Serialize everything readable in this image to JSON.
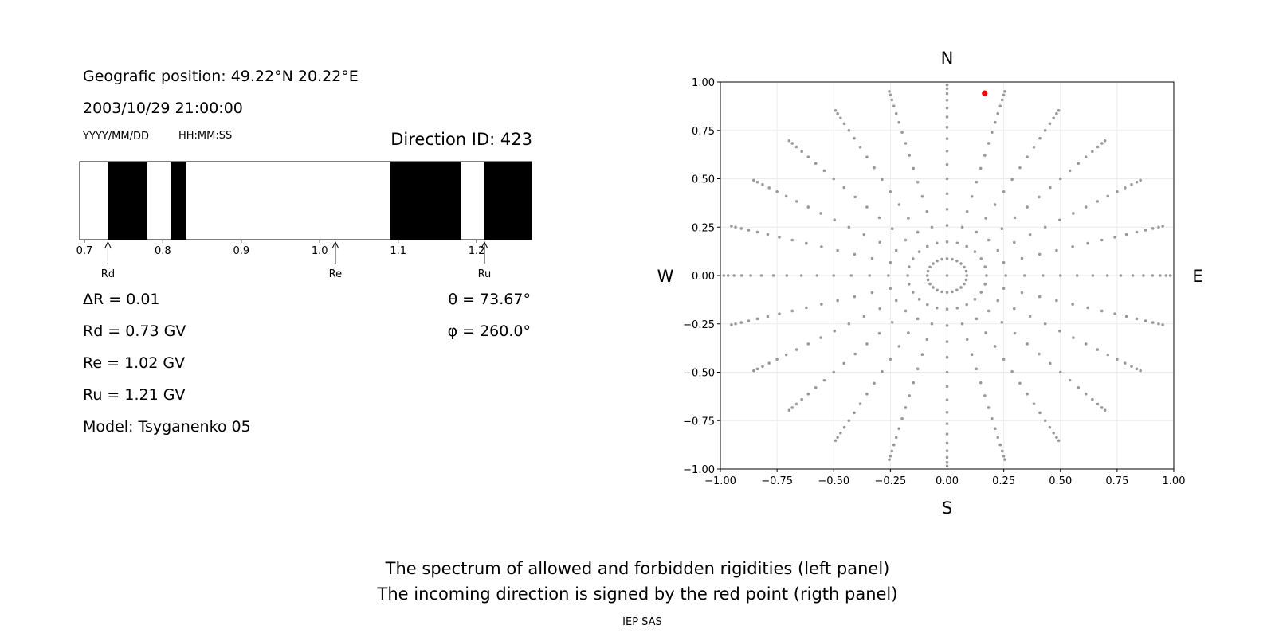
{
  "left_panel": {
    "geo_position": "Geografic position: 49.22°N 20.22°E",
    "datetime": "2003/10/29 21:00:00",
    "date_format": "YYYY/MM/DD",
    "time_format": "HH:MM:SS",
    "direction_id": "Direction ID: 423",
    "params": {
      "delta_r": "ΔR = 0.01",
      "rd": "Rd = 0.73 GV",
      "re": "Re = 1.02 GV",
      "ru": "Ru = 1.21 GV",
      "model": "Model: Tsyganenko 05",
      "theta": "θ = 73.67°",
      "phi": "φ = 260.0°"
    }
  },
  "chart_data": [
    {
      "type": "spectrum",
      "xlim": [
        0.694,
        1.27
      ],
      "ticks": [
        0.7,
        0.8,
        0.9,
        1.0,
        1.1,
        1.2
      ],
      "tick_labels": [
        "0.7",
        "0.8",
        "0.9",
        "1.0",
        "1.1",
        "1.2"
      ],
      "forbidden_bands": [
        [
          0.73,
          0.78
        ],
        [
          0.81,
          0.83
        ],
        [
          1.09,
          1.18
        ],
        [
          1.21,
          1.27
        ]
      ],
      "markers": [
        {
          "label": "Rd",
          "value": 0.73
        },
        {
          "label": "Re",
          "value": 1.02
        },
        {
          "label": "Ru",
          "value": 1.21
        }
      ]
    },
    {
      "type": "scatter",
      "xlim": [
        -1.0,
        1.0
      ],
      "ylim": [
        -1.0,
        1.0
      ],
      "ticks": [
        -1.0,
        -0.75,
        -0.5,
        -0.25,
        0.0,
        0.25,
        0.5,
        0.75,
        1.0
      ],
      "tick_labels": [
        "−1.00",
        "−0.75",
        "−0.50",
        "−0.25",
        "0.00",
        "0.25",
        "0.50",
        "0.75",
        "1.00"
      ],
      "grid": true,
      "compass": {
        "north": "N",
        "south": "S",
        "west": "W",
        "east": "E"
      },
      "series": [
        {
          "color": "#999999",
          "pattern": "polar-grid: 24 azimuths every 15°, zenith 0–80° in 5° steps, r = sin(zenith); centre point at 0,0"
        },
        {
          "color": "#ff0000",
          "points": [
            [
              0.166,
              0.942
            ]
          ]
        }
      ]
    }
  ],
  "captions": {
    "line1": "The spectrum of allowed and forbidden rigidities (left panel)",
    "line2": "The incoming direction is signed by the red point (rigth panel)"
  },
  "footer": "IEP SAS"
}
